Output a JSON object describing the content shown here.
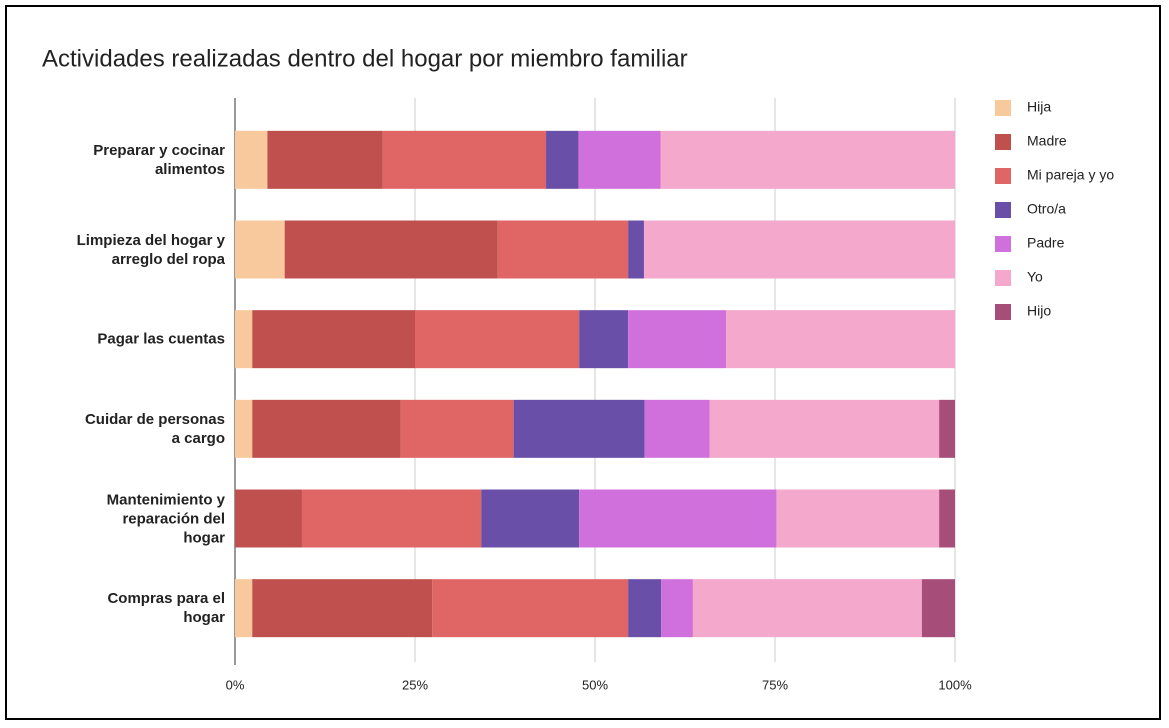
{
  "chart_data": {
    "type": "stacked-barh",
    "title": "Actividades realizadas dentro del hogar por miembro familiar",
    "categories": [
      "Preparar y cocinar\nalimentos",
      "Limpieza del hogar y\narreglo del ropa",
      "Pagar las cuentas",
      "Cuidar de personas\na cargo",
      "Mantenimiento y\nreparación del\nhogar",
      "Compras para el\nhogar"
    ],
    "series": [
      {
        "name": "Hija",
        "color": "#f8c99c",
        "values": [
          4.5,
          6.9,
          2.4,
          2.4,
          0,
          2.4
        ]
      },
      {
        "name": "Madre",
        "color": "#c0504d",
        "values": [
          16,
          29.6,
          22.6,
          20.6,
          9.3,
          25
        ]
      },
      {
        "name": "Mi pareja y yo",
        "color": "#e06666",
        "values": [
          22.7,
          18.1,
          22.8,
          15.7,
          24.9,
          27.2
        ]
      },
      {
        "name": "Otro/a",
        "color": "#6a4fa8",
        "values": [
          4.5,
          2.2,
          6.8,
          18.2,
          13.6,
          4.6
        ]
      },
      {
        "name": "Padre",
        "color": "#d070dc",
        "values": [
          11.4,
          0,
          13.6,
          9,
          27.4,
          4.4
        ]
      },
      {
        "name": "Yo",
        "color": "#f3a8cc",
        "values": [
          40.9,
          43.2,
          31.8,
          31.9,
          22.6,
          31.8
        ]
      },
      {
        "name": "Hijo",
        "color": "#a64d79",
        "values": [
          0,
          0,
          0,
          2.2,
          2.2,
          4.6
        ]
      }
    ],
    "xlim": [
      0,
      100
    ],
    "xticks": [
      {
        "value": 0,
        "label": "0%"
      },
      {
        "value": 25,
        "label": "25%"
      },
      {
        "value": 50,
        "label": "50%"
      },
      {
        "value": 75,
        "label": "75%"
      },
      {
        "value": 100,
        "label": "100%"
      }
    ],
    "grid": true,
    "legend": "right"
  }
}
